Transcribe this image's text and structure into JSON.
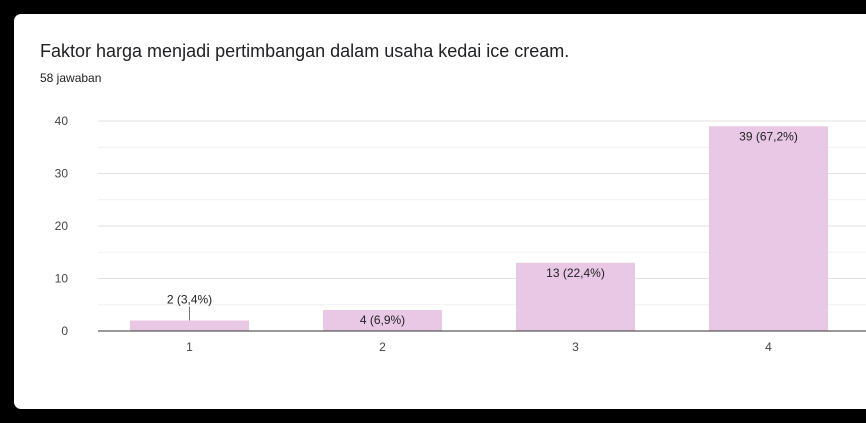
{
  "question": {
    "title": "Faktor harga menjadi pertimbangan dalam usaha kedai ice cream.",
    "responses": "58 jawaban"
  },
  "colors": {
    "bar": "#e8c8e5",
    "grid": "#e0e0e0",
    "axis": "#333333"
  },
  "chart_data": {
    "type": "bar",
    "title": "Faktor harga menjadi pertimbangan dalam usaha kedai ice cream.",
    "subtitle": "58 jawaban",
    "categories": [
      "1",
      "2",
      "3",
      "4"
    ],
    "values": [
      2,
      4,
      13,
      39
    ],
    "data_labels": [
      "2 (3,4%)",
      "4 (6,9%)",
      "13 (22,4%)",
      "39 (67,2%)"
    ],
    "yticks": [
      0,
      10,
      20,
      30,
      40
    ],
    "ylim": [
      0,
      40
    ],
    "grid": true
  }
}
